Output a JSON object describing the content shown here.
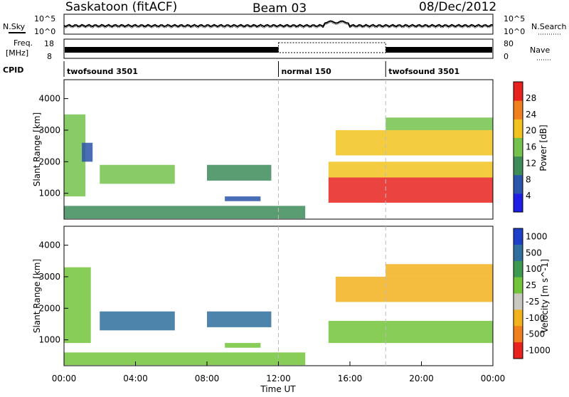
{
  "header": {
    "title": "Saskatoon (fitACF)",
    "beam": "Beam 03",
    "date": "08/Dec/2012"
  },
  "noise_panel": {
    "left_label": "N.Sky",
    "right_label": "N.Search",
    "left_ticks": [
      "10^5",
      "10^0"
    ],
    "right_ticks": [
      "10^5",
      "10^0"
    ]
  },
  "freq_panel": {
    "left_label_1": "Freq.",
    "left_label_2": "[MHz]",
    "right_label": "Nave",
    "left_ticks": [
      "18",
      "8"
    ],
    "right_ticks": [
      "80",
      "0"
    ]
  },
  "cpid_panel": {
    "label": "CPID",
    "segments": [
      {
        "name": "twofsound 3501",
        "start_hour": 0
      },
      {
        "name": "normal 150",
        "start_hour": 12
      },
      {
        "name": "twofsound 3501",
        "start_hour": 18
      }
    ]
  },
  "x_axis": {
    "label": "Time UT",
    "range_hours": [
      0,
      24
    ],
    "ticks": [
      "00:00",
      "04:00",
      "08:00",
      "12:00",
      "16:00",
      "20:00",
      "00:00"
    ]
  },
  "chart_data": [
    {
      "type": "heatmap",
      "title": "Power",
      "ylabel": "Slant Range [km]",
      "ylim": [
        180,
        4600
      ],
      "y_ticks": [
        1000,
        2000,
        3000,
        4000
      ],
      "colorbar_label": "Power [dB]",
      "colorbar_ticks": [
        "4",
        "8",
        "12",
        "16",
        "20",
        "24",
        "28"
      ],
      "colorbar_colors": [
        "#1e1ee6",
        "#2a55a8",
        "#3d8c5a",
        "#74c24b",
        "#f2c31e",
        "#f07f1e",
        "#e8231e"
      ],
      "colorbar_range": [
        0,
        30
      ],
      "regions": [
        {
          "t0": 0.0,
          "t1": 1.2,
          "r0": 900,
          "r1": 3500,
          "value": 14
        },
        {
          "t0": 1.0,
          "t1": 1.6,
          "r0": 2000,
          "r1": 2600,
          "value": 8
        },
        {
          "t0": 2.0,
          "t1": 6.2,
          "r0": 1300,
          "r1": 1900,
          "value": 13
        },
        {
          "t0": 8.0,
          "t1": 11.6,
          "r0": 1400,
          "r1": 1900,
          "value": 11
        },
        {
          "t0": 9.0,
          "t1": 11.0,
          "r0": 750,
          "r1": 900,
          "value": 6
        },
        {
          "t0": 0.0,
          "t1": 13.5,
          "r0": 200,
          "r1": 600,
          "value": 10
        },
        {
          "t0": 14.8,
          "t1": 24.0,
          "r0": 700,
          "r1": 1500,
          "value": 26
        },
        {
          "t0": 14.8,
          "t1": 24.0,
          "r0": 1500,
          "r1": 2000,
          "value": 18
        },
        {
          "t0": 15.2,
          "t1": 24.0,
          "r0": 2200,
          "r1": 3000,
          "value": 20
        },
        {
          "t0": 18.0,
          "t1": 24.0,
          "r0": 3000,
          "r1": 3400,
          "value": 14
        }
      ]
    },
    {
      "type": "heatmap",
      "title": "Velocity",
      "ylabel": "Slant Range [km]",
      "ylim": [
        180,
        4600
      ],
      "y_ticks": [
        1000,
        2000,
        3000,
        4000
      ],
      "colorbar_label": "Velocity [m s^-1]",
      "colorbar_ticks": [
        "1000",
        "500",
        "100",
        "25",
        "-25",
        "-100",
        "-500",
        "-1000"
      ],
      "colorbar_colors": [
        "#1e3fc8",
        "#2e6f9e",
        "#3d9a50",
        "#72c43a",
        "#c8c8c0",
        "#f2b21e",
        "#f07f1e",
        "#e8231e"
      ],
      "regions": [
        {
          "t0": 0.0,
          "t1": 1.5,
          "r0": 900,
          "r1": 3300,
          "value": 0
        },
        {
          "t0": 2.0,
          "t1": 6.2,
          "r0": 1300,
          "r1": 1900,
          "value": 150
        },
        {
          "t0": 8.0,
          "t1": 11.6,
          "r0": 1400,
          "r1": 1900,
          "value": 120
        },
        {
          "t0": 9.0,
          "t1": 11.0,
          "r0": 750,
          "r1": 900,
          "value": 0
        },
        {
          "t0": 0.0,
          "t1": 13.5,
          "r0": 200,
          "r1": 600,
          "value": 0
        },
        {
          "t0": 14.8,
          "t1": 24.0,
          "r0": 900,
          "r1": 1600,
          "value": 0
        },
        {
          "t0": 15.2,
          "t1": 24.0,
          "r0": 2200,
          "r1": 3000,
          "value": -300
        },
        {
          "t0": 18.0,
          "t1": 24.0,
          "r0": 3000,
          "r1": 3400,
          "value": -150
        }
      ]
    }
  ]
}
